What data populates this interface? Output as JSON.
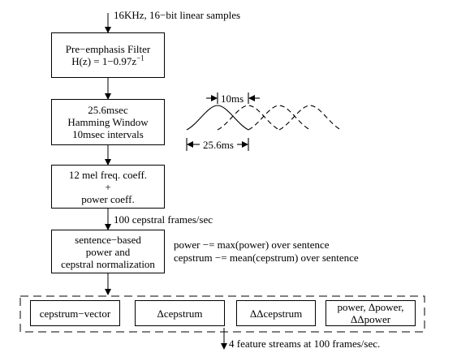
{
  "diagram": {
    "input_label": "16KHz, 16−bit linear samples",
    "pre_emphasis": {
      "title": "Pre−emphasis Filter",
      "formula_base": "H(z) = 1−0.97z",
      "formula_exp": "−1"
    },
    "hamming": {
      "line1": "25.6msec",
      "line2": "Hamming Window",
      "line3": "10msec intervals"
    },
    "window_sketch": {
      "shift_label": "10ms",
      "width_label": "25.6ms"
    },
    "mel": {
      "line1": "12 mel freq. coeff.",
      "line2": "+",
      "line3": "power coeff."
    },
    "frames_label": "100 cepstral frames/sec",
    "normalization": {
      "line1": "sentence−based",
      "line2": "power and",
      "line3": "cepstral normalization"
    },
    "notes": {
      "power": "power −= max(power) over sentence",
      "cepstrum": "cepstrum −= mean(cepstrum) over sentence"
    },
    "features": [
      {
        "line1": "cepstrum−vector",
        "line2": ""
      },
      {
        "line1": "Δcepstrum",
        "line2": ""
      },
      {
        "line1": "ΔΔcepstrum",
        "line2": ""
      },
      {
        "line1": "power, Δpower,",
        "line2": "ΔΔpower"
      }
    ],
    "output_label": "4 feature streams at 100 frames/sec."
  }
}
